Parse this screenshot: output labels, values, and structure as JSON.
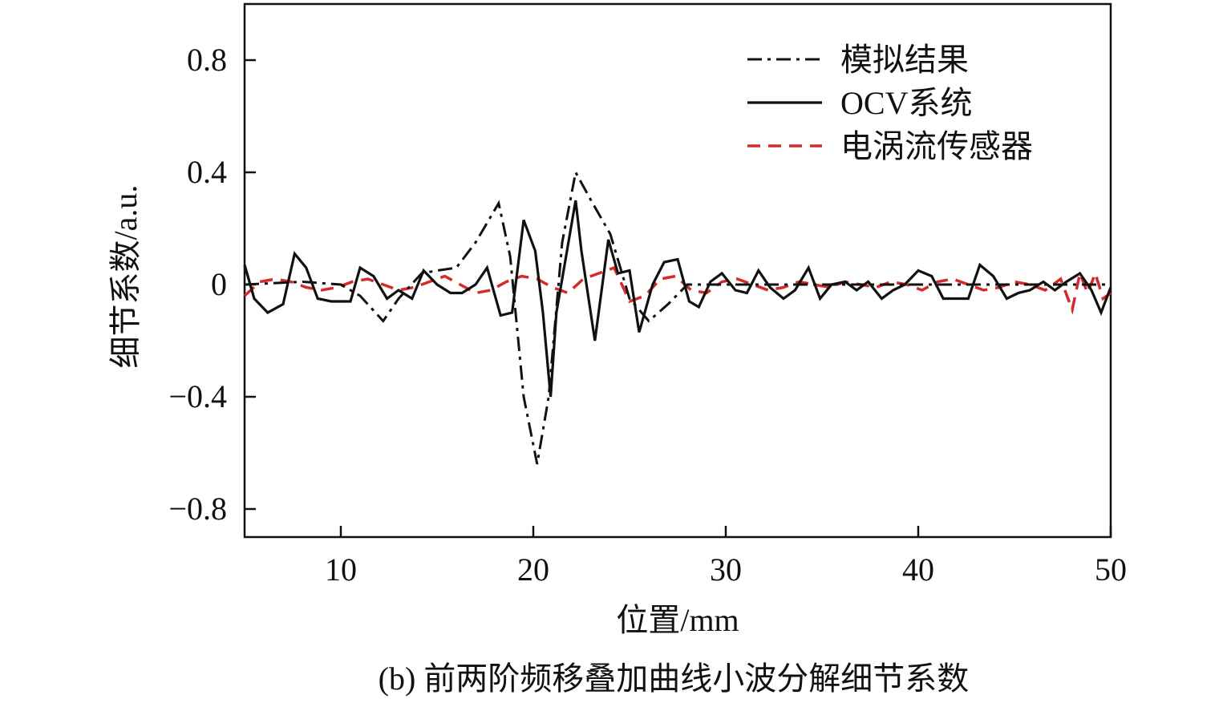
{
  "chart_data": {
    "type": "line",
    "title": "",
    "caption": "(b) 前两阶频移叠加曲线小波分解细节系数",
    "xlabel": "位置/mm",
    "ylabel": "细节系数/a.u.",
    "xlim": [
      5,
      50
    ],
    "ylim": [
      -0.9,
      1.0
    ],
    "x_ticks": [
      10,
      20,
      30,
      40,
      50
    ],
    "x_tick_labels": [
      "10",
      "20",
      "30",
      "40",
      "50"
    ],
    "y_ticks": [
      0.8,
      0.4,
      0,
      -0.4,
      -0.8
    ],
    "y_tick_labels": [
      "0.8",
      "0.4",
      "0",
      "−0.4",
      "−0.8"
    ],
    "grid": false,
    "legend_position": "top-right",
    "series": [
      {
        "name": "模拟结果",
        "color": "#111111",
        "style": "dashdot",
        "x": [
          5,
          8,
          10,
          11,
          12.2,
          13,
          14.2,
          15,
          16,
          17,
          18.2,
          18.8,
          19.5,
          20.2,
          20.8,
          21.5,
          22.2,
          23,
          24,
          25,
          26,
          27,
          28,
          30,
          35,
          40,
          45,
          50
        ],
        "y": [
          0.0,
          0.01,
          0.0,
          -0.04,
          -0.13,
          -0.05,
          0.04,
          0.05,
          0.06,
          0.15,
          0.29,
          0.1,
          -0.4,
          -0.64,
          -0.4,
          0.15,
          0.4,
          0.3,
          0.18,
          -0.05,
          -0.13,
          -0.07,
          0.0,
          0.0,
          0.0,
          0.0,
          0.0,
          0.0
        ]
      },
      {
        "name": "OCV系统",
        "color": "#111111",
        "style": "solid",
        "x": [
          5,
          5.5,
          6.2,
          7,
          7.6,
          8.2,
          8.8,
          9.5,
          10.5,
          11,
          11.7,
          12.4,
          13,
          13.7,
          14.3,
          15,
          15.7,
          16.3,
          17,
          17.6,
          18.3,
          18.9,
          19.5,
          20.1,
          20.5,
          20.9,
          21.2,
          21.8,
          22.2,
          22.5,
          23.2,
          23.9,
          24.4,
          25,
          25.5,
          26.2,
          26.8,
          27.5,
          28.1,
          28.6,
          29.2,
          29.8,
          30.5,
          31.1,
          31.7,
          32.3,
          33,
          33.6,
          34.3,
          34.9,
          35.5,
          36.2,
          36.8,
          37.4,
          38.1,
          38.7,
          39.3,
          40,
          40.7,
          41.3,
          42,
          42.6,
          43.2,
          43.9,
          44.6,
          45.2,
          45.8,
          46.5,
          47.1,
          47.7,
          48.4,
          49,
          49.5,
          50
        ],
        "y": [
          0.07,
          -0.05,
          -0.1,
          -0.07,
          0.11,
          0.06,
          -0.05,
          -0.06,
          -0.06,
          0.06,
          0.03,
          -0.05,
          -0.02,
          -0.05,
          0.05,
          0.0,
          -0.03,
          -0.03,
          0.0,
          0.06,
          -0.11,
          -0.1,
          0.23,
          0.12,
          -0.1,
          -0.4,
          -0.1,
          0.14,
          0.3,
          0.12,
          -0.2,
          0.16,
          0.04,
          0.05,
          -0.17,
          0.0,
          0.08,
          0.09,
          -0.06,
          -0.08,
          0.01,
          0.04,
          -0.02,
          -0.03,
          0.05,
          -0.01,
          -0.05,
          -0.02,
          0.06,
          -0.05,
          0.0,
          0.01,
          -0.02,
          0.01,
          -0.05,
          -0.02,
          0.0,
          0.05,
          0.03,
          -0.05,
          -0.05,
          -0.05,
          0.07,
          0.03,
          -0.05,
          -0.03,
          -0.02,
          0.01,
          -0.02,
          0.01,
          0.04,
          -0.02,
          -0.1,
          -0.01
        ]
      },
      {
        "name": "电涡流传感器",
        "color": "#d42a2a",
        "style": "dashed",
        "x": [
          5,
          5.8,
          6.6,
          7.4,
          8.2,
          9,
          9.8,
          10.6,
          11.4,
          12.2,
          13,
          13.8,
          14.6,
          15.4,
          16.2,
          17,
          17.8,
          18.6,
          19.4,
          20.2,
          21,
          21.8,
          22.6,
          23.4,
          24.2,
          25,
          25.8,
          26.6,
          27.4,
          28.2,
          29,
          29.8,
          30.6,
          31.4,
          32.2,
          33,
          33.8,
          34.6,
          35.4,
          36.2,
          37,
          37.8,
          38.6,
          39.4,
          40.2,
          41,
          41.8,
          42.6,
          43.4,
          44.2,
          45,
          45.8,
          46.6,
          47.4,
          48,
          48.4,
          48.8,
          49.2,
          49.6,
          50
        ],
        "y": [
          -0.04,
          0.01,
          0.02,
          0.01,
          -0.01,
          -0.02,
          -0.01,
          0.01,
          0.02,
          0.0,
          -0.02,
          -0.01,
          0.01,
          0.03,
          0.0,
          -0.03,
          -0.02,
          0.01,
          0.03,
          0.02,
          -0.01,
          -0.03,
          0.02,
          0.04,
          0.06,
          -0.06,
          -0.04,
          0.02,
          0.03,
          -0.02,
          -0.03,
          0.01,
          0.02,
          0.0,
          -0.02,
          -0.01,
          0.01,
          0.0,
          -0.01,
          0.01,
          0.0,
          -0.01,
          0.01,
          0.0,
          -0.02,
          0.01,
          0.02,
          0.0,
          -0.02,
          -0.01,
          0.01,
          0.0,
          -0.02,
          0.02,
          -0.09,
          0.04,
          -0.03,
          0.04,
          -0.05,
          -0.03
        ]
      }
    ]
  }
}
